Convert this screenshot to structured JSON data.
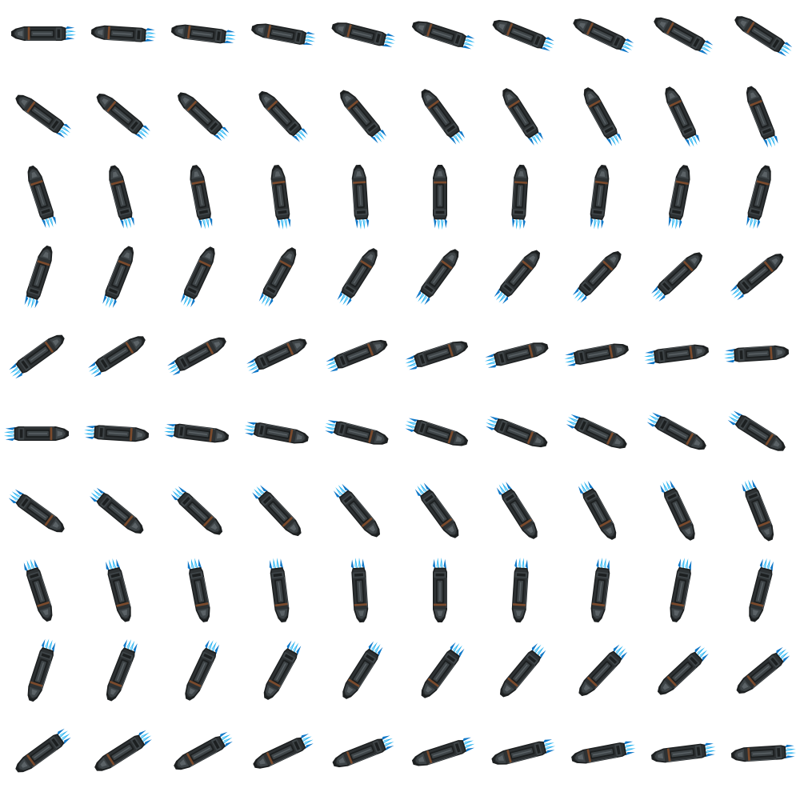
{
  "sprite_sheet": {
    "rows": 10,
    "columns": 10,
    "frame_count": 100,
    "subject": "ship-sprite",
    "background": "#ffffff",
    "colors": {
      "hull_dark": "#1c1f20",
      "hull_mid": "#2d3133",
      "hull_panel": "#3e4447",
      "hull_light": "#5b6266",
      "accent_rust": "#7a4a2c",
      "thruster_cyan": "#2ab4f0",
      "thruster_light": "#8fdcff",
      "thruster_deep": "#1078c8"
    }
  }
}
